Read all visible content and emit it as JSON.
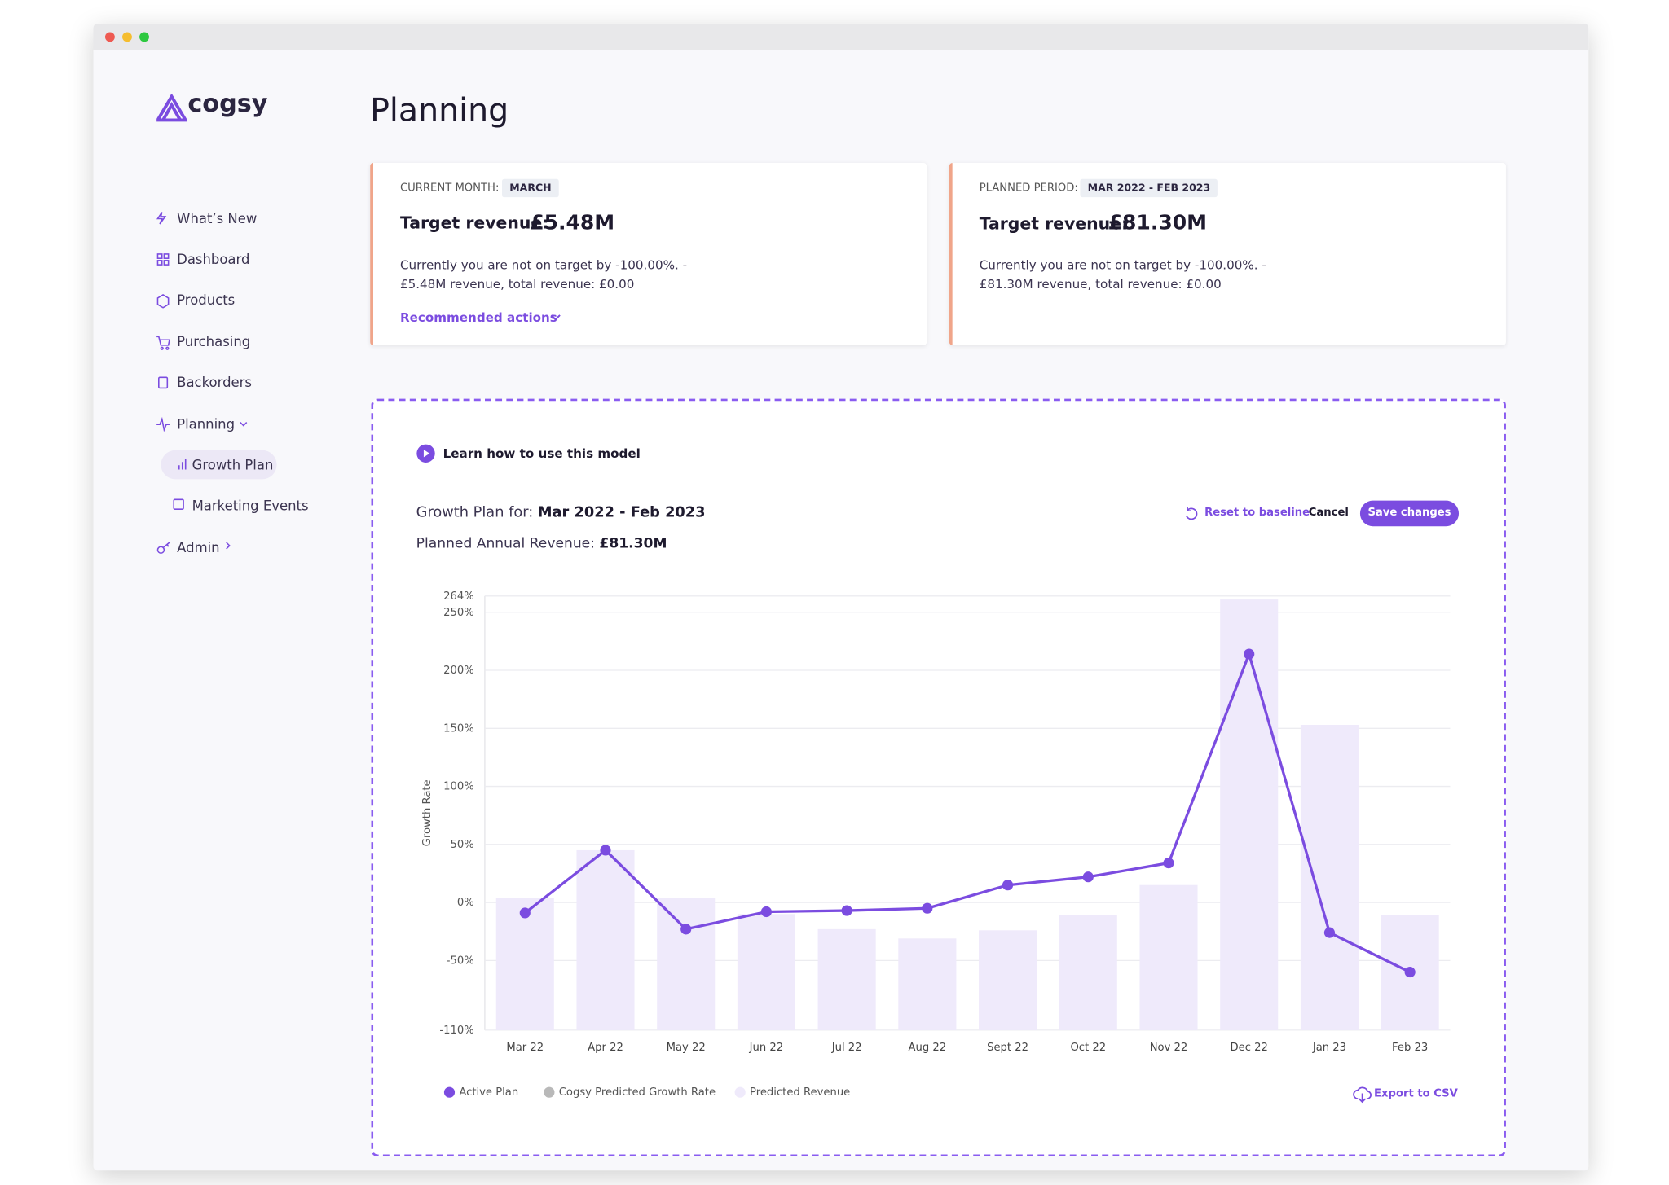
{
  "sidebar": {
    "logo": "cogsy",
    "nav": [
      "What’s New",
      "Dashboard",
      "Products",
      "Purchasing",
      "Backorders",
      "Planning",
      "Growth Plan",
      "Marketing Events",
      "Admin"
    ]
  },
  "page": {
    "title": "Planning"
  },
  "cards": [
    {
      "label": "CURRENT MONTH:",
      "badge": "MARCH",
      "target_label": "Target revenue:",
      "target_value": "£5.48M",
      "text_1": "Currently you are not on target by -100.00%. -",
      "text_2": "£5.48M revenue, total revenue: £0.00",
      "action": "Recommended actions"
    },
    {
      "label": "PLANNED PERIOD:",
      "badge": "MAR 2022 - FEB 2023",
      "target_label": "Target revenue:",
      "target_value": "£81.30M",
      "text_1": "Currently you are not on target by -100.00%. -",
      "text_2": "£81.30M revenue, total revenue: £0.00"
    }
  ],
  "model": {
    "learn": "Learn how to use this model",
    "plan_label": "Growth Plan for:",
    "plan_period": "Mar 2022 - Feb 2023",
    "annual_label": "Planned Annual Revenue:",
    "annual_value": "£81.30M",
    "reset": "Reset to baseline",
    "cancel": "Cancel",
    "save": "Save changes",
    "export": "Export to CSV"
  },
  "chart_data": {
    "type": "combo",
    "y_label": "Growth Rate",
    "categories": [
      "Mar 22",
      "Apr 22",
      "May 22",
      "Jun 22",
      "Jul 22",
      "Aug 22",
      "Sept 22",
      "Oct 22",
      "Nov 22",
      "Dec 22",
      "Jan 23",
      "Feb 23"
    ],
    "series": [
      {
        "name": "Active Plan",
        "type": "line",
        "color": "#7b4ce0",
        "values": [
          -9,
          45,
          -23,
          -8,
          -7,
          -5,
          15,
          22,
          34,
          214,
          -26,
          -60
        ]
      },
      {
        "name": "Cogsy Predicted Growth Rate",
        "type": "line",
        "color": "#b9b9b9",
        "values": [
          null,
          null,
          null,
          null,
          null,
          null,
          null,
          null,
          null,
          null,
          null,
          null
        ]
      },
      {
        "name": "Predicted Revenue",
        "type": "bar",
        "color": "#efeafb",
        "values": [
          4,
          45,
          4,
          -10,
          -23,
          -31,
          -24,
          -11,
          15,
          261,
          153,
          -11
        ]
      }
    ],
    "ylim": [
      -110,
      264
    ],
    "yticks": [
      {
        "value": -110,
        "label": "-110%"
      },
      {
        "value": -50,
        "label": "-50%"
      },
      {
        "value": 0,
        "label": "0%"
      },
      {
        "value": 50,
        "label": "50%"
      },
      {
        "value": 100,
        "label": "100%"
      },
      {
        "value": 150,
        "label": "150%"
      },
      {
        "value": 200,
        "label": "200%"
      },
      {
        "value": 250,
        "label": "250%"
      },
      {
        "value": 264,
        "label": "264%"
      }
    ],
    "grid": true
  }
}
